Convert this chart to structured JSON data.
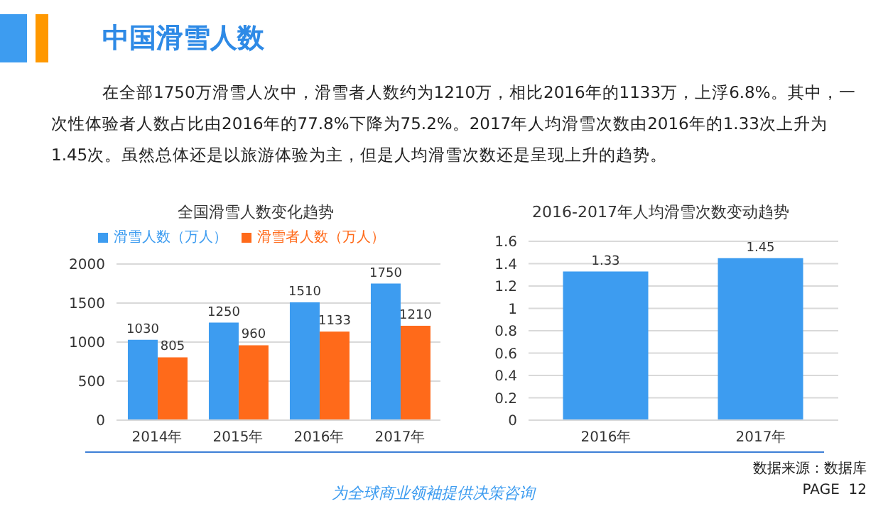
{
  "chart_data": [
    {
      "type": "other",
      "title": "中国滑雪人数",
      "annotations": [
        "在全部1750万滑雪人次中，滑雪者人数约为1210万，相比2016年的1133万，上浮6.8%。其中，一次性体验者人数占比由2016年的77.8%下降为75.2%。2017年人均滑雪次数由2016年的1.33次上升为1.45次。虽然总体还是以旅游体验为主，但是人均滑雪次数还是呈现上升的趋势。",
        "数据来源：数据库",
        "为全球商业领袖提供决策咨询",
        "PAGE  12"
      ]
    },
    {
      "type": "bar",
      "title": "全国滑雪人数变化趋势",
      "categories": [
        "2014年",
        "2015年",
        "2016年",
        "2017年"
      ],
      "series": [
        {
          "name": "滑雪人数（万人）",
          "color": "#3d9cf0",
          "values": [
            1030,
            1250,
            1510,
            1750
          ]
        },
        {
          "name": "滑雪者人数（万人）",
          "color": "#ff6a1a",
          "values": [
            805,
            960,
            1133,
            1210
          ]
        }
      ],
      "ylim": [
        0,
        2000
      ],
      "yticks": [
        0,
        500,
        1000,
        1500,
        2000
      ],
      "grid": "y",
      "legend": "top",
      "data_labels": true
    },
    {
      "type": "bar",
      "title": "2016-2017年人均滑雪次数变动趋势",
      "categories": [
        "2016年",
        "2017年"
      ],
      "values": [
        1.33,
        1.45
      ],
      "color": "#3d9cf0",
      "ylim": [
        0,
        1.6
      ],
      "yticks": [
        0,
        0.2,
        0.4,
        0.6,
        0.8,
        1,
        1.2,
        1.4,
        1.6
      ],
      "grid": "y",
      "data_labels": true
    }
  ]
}
